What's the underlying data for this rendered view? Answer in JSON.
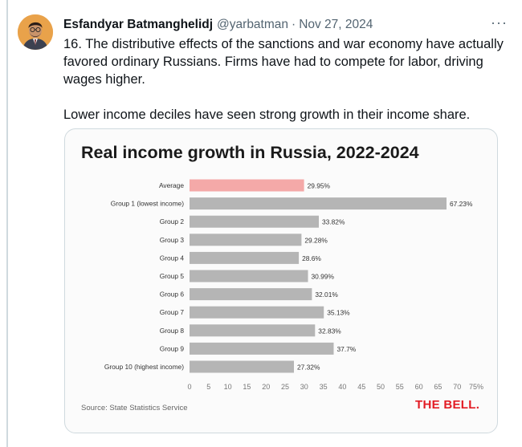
{
  "tweet": {
    "author_name": "Esfandyar Batmanghelidj",
    "handle": "@yarbatman",
    "separator": "·",
    "date": "Nov 27, 2024",
    "more_label": "···",
    "paragraphs": [
      "16. The distributive effects of the sanctions and war economy have actually favored ordinary Russians. Firms have had to compete for labor, driving wages higher.",
      "Lower income deciles have seen strong growth in their income share."
    ]
  },
  "card": {
    "source": "Source: State Statistics Service",
    "logo": "THE BELL."
  },
  "chart_data": {
    "type": "bar",
    "orientation": "horizontal",
    "title": "Real income growth in Russia, 2022-2024",
    "categories": [
      "Average",
      "Group 1 (lowest income)",
      "Group 2",
      "Group 3",
      "Group 4",
      "Group 5",
      "Group 6",
      "Group 7",
      "Group 8",
      "Group 9",
      "Group 10 (highest income)"
    ],
    "values": [
      29.95,
      67.23,
      33.82,
      29.28,
      28.6,
      30.99,
      32.01,
      35.13,
      32.83,
      37.7,
      27.32
    ],
    "value_labels": [
      "29.95%",
      "67.23%",
      "33.82%",
      "29.28%",
      "28.6%",
      "30.99%",
      "32.01%",
      "35.13%",
      "32.83%",
      "37.7%",
      "27.32%"
    ],
    "xlim": [
      0,
      75
    ],
    "xticks": [
      "0",
      "5",
      "10",
      "15",
      "20",
      "25",
      "30",
      "35",
      "40",
      "45",
      "50",
      "55",
      "60",
      "65",
      "70",
      "75%"
    ],
    "grid": false,
    "colors": {
      "highlight": "#f4a9a8",
      "bar": "#b5b5b5",
      "text": "#333333",
      "tick": "#777777"
    }
  }
}
